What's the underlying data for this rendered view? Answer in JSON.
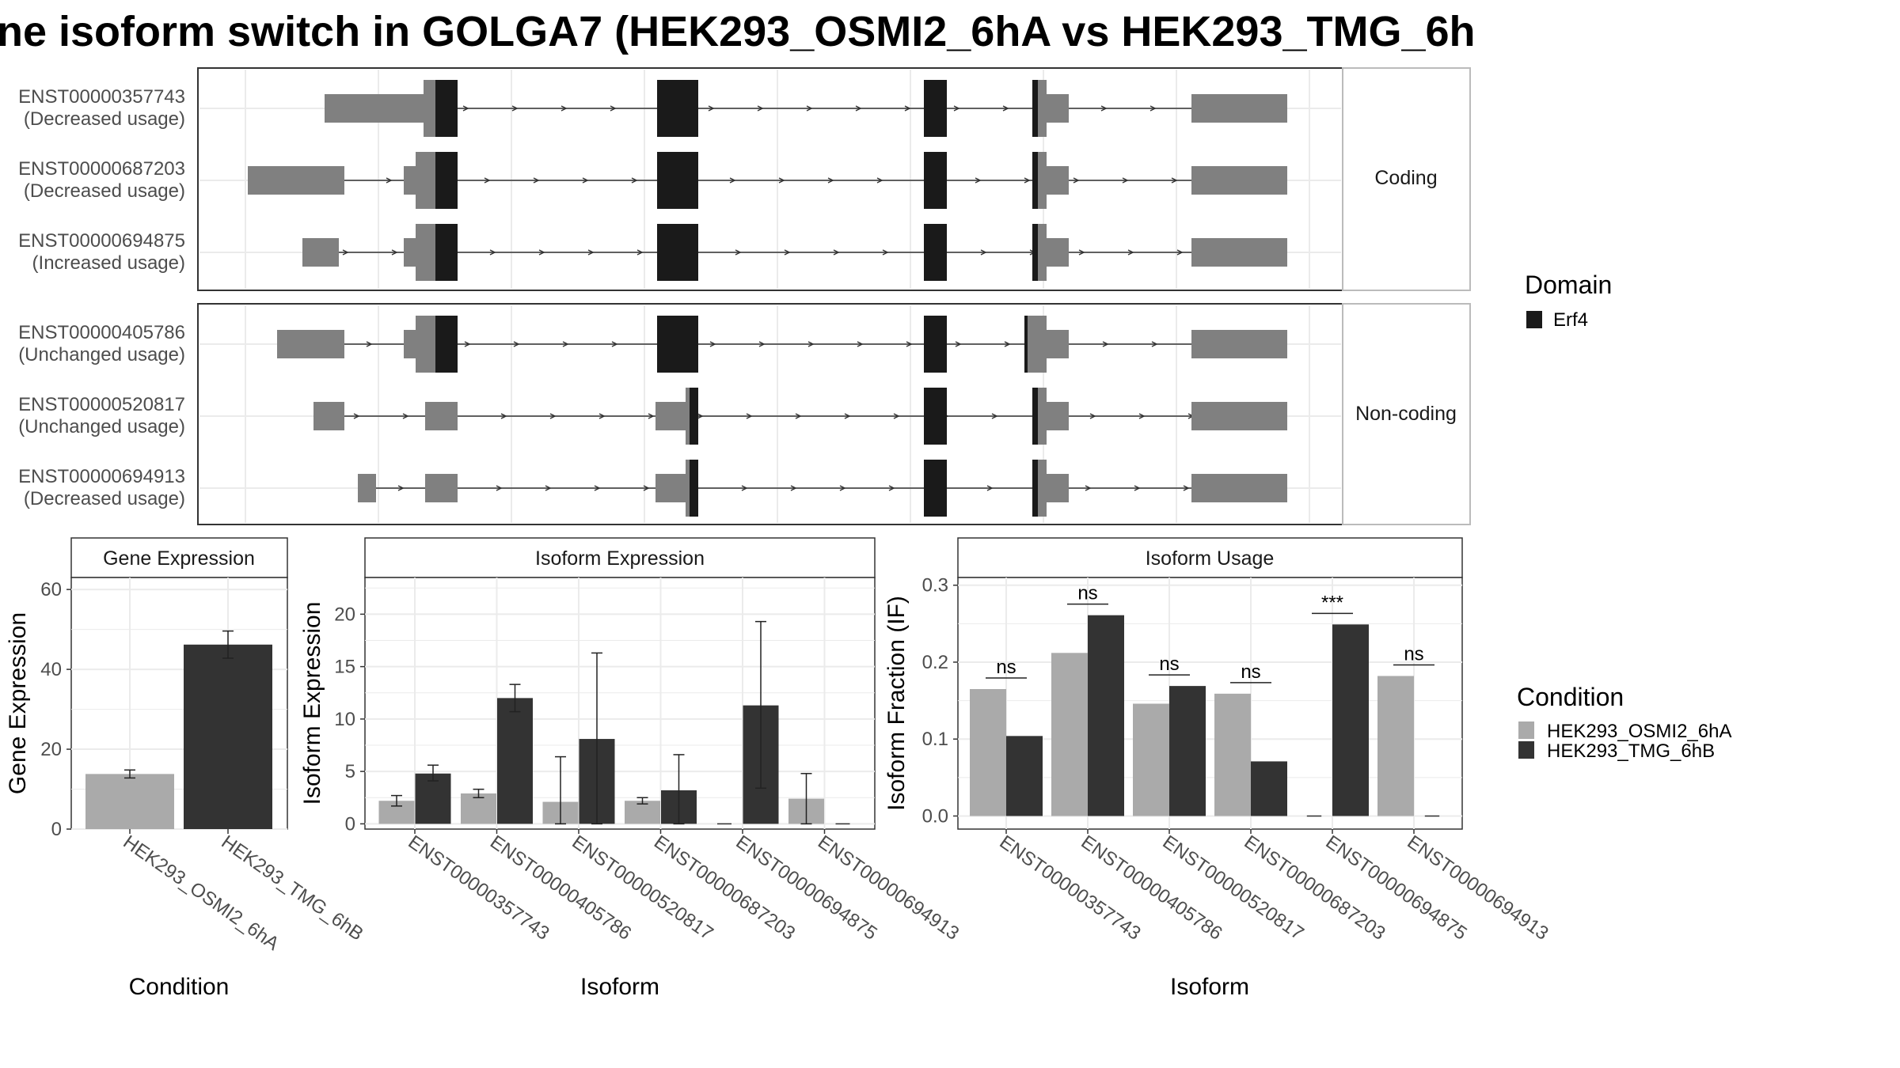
{
  "title": "ne isoform switch in GOLGA7 (HEK293_OSMI2_6hA vs HEK293_TMG_6h",
  "colors": {
    "exon_gray": "#808080",
    "domain_black": "#1a1a1a",
    "cond_a": "#aaaaaa",
    "cond_b": "#333333",
    "grid": "#ebebeb",
    "frame": "#333333"
  },
  "chart_data": [
    {
      "type": "gene-structure",
      "facets": [
        {
          "label": "Coding",
          "transcripts": [
            {
              "id": "ENST00000357743",
              "usage": "(Decreased usage)"
            },
            {
              "id": "ENST00000687203",
              "usage": "(Decreased usage)"
            },
            {
              "id": "ENST00000694875",
              "usage": "(Increased usage)"
            }
          ]
        },
        {
          "label": "Non-coding",
          "transcripts": [
            {
              "id": "ENST00000405786",
              "usage": "(Unchanged usage)"
            },
            {
              "id": "ENST00000520817",
              "usage": "(Unchanged usage)"
            },
            {
              "id": "ENST00000694913",
              "usage": "(Decreased usage)"
            }
          ]
        }
      ],
      "legend": {
        "title": "Domain",
        "items": [
          {
            "name": "Erf4",
            "color": "#1a1a1a"
          }
        ]
      }
    },
    {
      "type": "bar",
      "strip": "Gene Expression",
      "xlabel": "Condition",
      "ylabel": "Gene Expression",
      "ylim": [
        0,
        63
      ],
      "yticks": [
        0,
        20,
        40,
        60
      ],
      "categories": [
        "HEK293_OSMI2_6hA",
        "HEK293_TMG_6hB"
      ],
      "values": [
        13.8,
        46.2
      ],
      "err_low": [
        12.8,
        42.8
      ],
      "err_high": [
        14.8,
        49.6
      ]
    },
    {
      "type": "bar",
      "strip": "Isoform Expression",
      "xlabel": "Isoform",
      "ylabel": "Isoform Expression",
      "ylim": [
        -0.5,
        23.5
      ],
      "yticks": [
        0,
        5,
        10,
        15,
        20
      ],
      "categories": [
        "ENST00000357743",
        "ENST00000405786",
        "ENST00000520817",
        "ENST00000687203",
        "ENST00000694875",
        "ENST00000694913"
      ],
      "series": [
        {
          "name": "HEK293_OSMI2_6hA",
          "values": [
            2.2,
            2.9,
            2.1,
            2.2,
            0,
            2.4
          ],
          "err_low": [
            1.7,
            2.5,
            0,
            1.9,
            0,
            0
          ],
          "err_high": [
            2.7,
            3.3,
            6.4,
            2.5,
            0,
            4.8
          ]
        },
        {
          "name": "HEK293_TMG_6hB",
          "values": [
            4.8,
            12.0,
            8.1,
            3.2,
            11.3,
            0
          ],
          "err_low": [
            4.1,
            10.7,
            0,
            0,
            3.4,
            0
          ],
          "err_high": [
            5.6,
            13.3,
            16.3,
            6.6,
            19.3,
            0
          ]
        }
      ]
    },
    {
      "type": "bar",
      "strip": "Isoform Usage",
      "xlabel": "Isoform",
      "ylabel": "Isoform Fraction (IF)",
      "ylim": [
        -0.017,
        0.31
      ],
      "yticks": [
        "0.0",
        "0.1",
        "0.2",
        "0.3"
      ],
      "categories": [
        "ENST00000357743",
        "ENST00000405786",
        "ENST00000520817",
        "ENST00000687203",
        "ENST00000694875",
        "ENST00000694913"
      ],
      "series": [
        {
          "name": "HEK293_OSMI2_6hA",
          "values": [
            0.165,
            0.212,
            0.146,
            0.159,
            0,
            0.182
          ]
        },
        {
          "name": "HEK293_TMG_6hB",
          "values": [
            0.104,
            0.261,
            0.169,
            0.071,
            0.249,
            0
          ]
        }
      ],
      "significance": [
        "ns",
        "ns",
        "ns",
        "ns",
        "***",
        "ns"
      ],
      "legend": {
        "title": "Condition",
        "items": [
          "HEK293_OSMI2_6hA",
          "HEK293_TMG_6hB"
        ]
      }
    }
  ]
}
